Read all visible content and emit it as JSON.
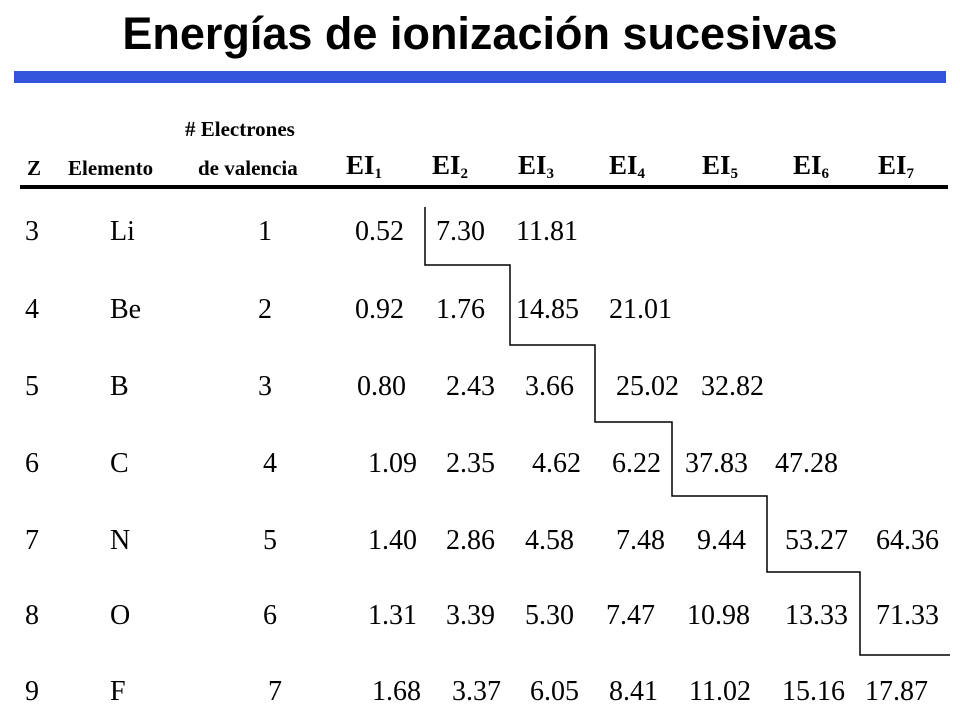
{
  "title": "Energías de ionización sucesivas",
  "colors": {
    "accent_bar": "#3355dd"
  },
  "headers": {
    "z": "Z",
    "element": "Elemento",
    "valence_top": "# Electrones",
    "valence_bottom": "de valencia",
    "ie_prefix": "EI",
    "ie_subscripts": [
      "1",
      "2",
      "3",
      "4",
      "5",
      "6",
      "7"
    ]
  },
  "rows": [
    {
      "z": "3",
      "element": "Li",
      "valence": "1",
      "ie": [
        "0.52",
        "7.30",
        "11.81"
      ]
    },
    {
      "z": "4",
      "element": "Be",
      "valence": "2",
      "ie": [
        "0.92",
        "1.76",
        "14.85",
        "21.01"
      ]
    },
    {
      "z": "5",
      "element": "B",
      "valence": "3",
      "ie": [
        "0.80",
        "2.43",
        "3.66",
        "25.02",
        "32.82"
      ]
    },
    {
      "z": "6",
      "element": "C",
      "valence": "4",
      "ie": [
        "1.09",
        "2.35",
        "4.62",
        "6.22",
        "37.83",
        "47.28"
      ]
    },
    {
      "z": "7",
      "element": "N",
      "valence": "5",
      "ie": [
        "1.40",
        "2.86",
        "4.58",
        "7.48",
        "9.44",
        "53.27",
        "64.36"
      ]
    },
    {
      "z": "8",
      "element": "O",
      "valence": "6",
      "ie": [
        "1.31",
        "3.39",
        "5.30",
        "7.47",
        "10.98",
        "13.33",
        "71.33"
      ]
    },
    {
      "z": "9",
      "element": "F",
      "valence": "7",
      "ie": [
        "1.68",
        "3.37",
        "6.05",
        "8.41",
        "11.02",
        "15.16",
        "17.87"
      ]
    }
  ]
}
